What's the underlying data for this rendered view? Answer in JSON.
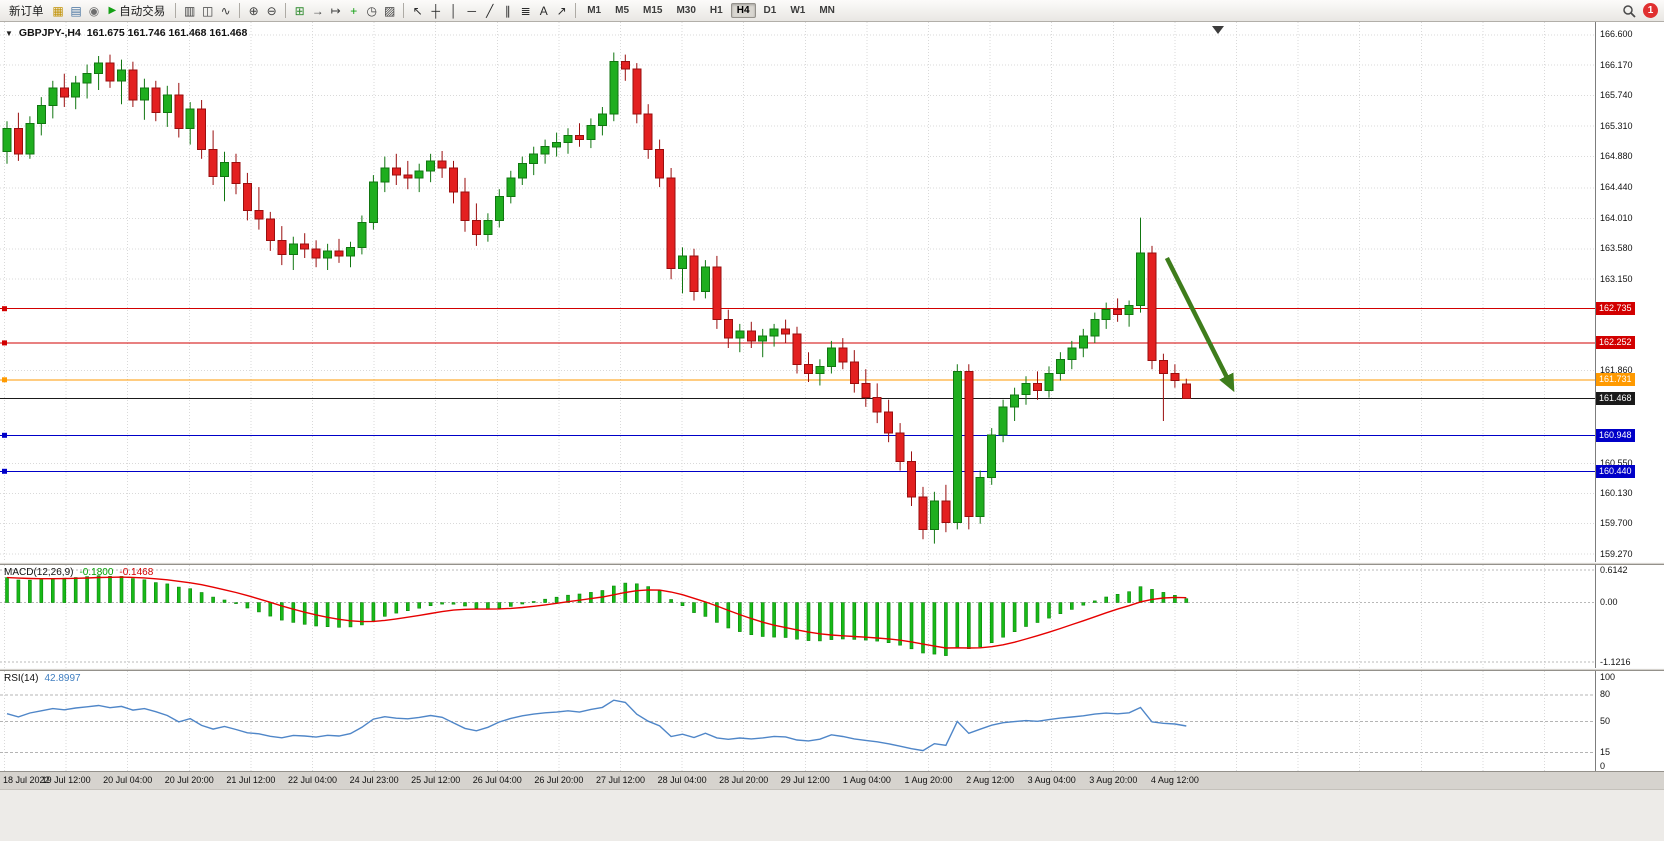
{
  "icons": {
    "chart_menu": "▼"
  },
  "toolbar": {
    "items": [
      {
        "type": "button",
        "name": "new-order-button",
        "label": "新订单"
      },
      {
        "type": "icon",
        "name": "market-watch-icon",
        "glyph": "▦",
        "color": "#c09000"
      },
      {
        "type": "icon",
        "name": "data-window-icon",
        "glyph": "▤",
        "color": "#44719f"
      },
      {
        "type": "icon",
        "name": "navigator-icon",
        "glyph": "◉",
        "color": "#6e6e6e"
      },
      {
        "type": "button",
        "name": "auto-trading-button",
        "label": "自动交易",
        "glyph": "▶",
        "glyph_color": "#14a014"
      },
      {
        "type": "sep"
      },
      {
        "type": "icon",
        "name": "bar-chart-icon",
        "glyph": "▥",
        "color": "#3e3e3e"
      },
      {
        "type": "icon",
        "name": "candlestick-chart-icon",
        "glyph": "◫",
        "color": "#3e3e3e"
      },
      {
        "type": "icon",
        "name": "line-chart-icon",
        "glyph": "∿",
        "color": "#3e3e3e"
      },
      {
        "type": "sep"
      },
      {
        "type": "icon",
        "name": "zoom-in-icon",
        "glyph": "⊕",
        "color": "#3e3e3e"
      },
      {
        "type": "icon",
        "name": "zoom-out-icon",
        "glyph": "⊖",
        "color": "#3e3e3e"
      },
      {
        "type": "sep"
      },
      {
        "type": "icon",
        "name": "tile-windows-icon",
        "glyph": "⊞",
        "color": "#2e8b2e"
      },
      {
        "type": "icon",
        "name": "auto-scroll-icon",
        "glyph": "→",
        "color": "#3e3e3e"
      },
      {
        "type": "icon",
        "name": "chart-shift-icon",
        "glyph": "↦",
        "color": "#3e3e3e"
      },
      {
        "type": "icon",
        "name": "indicators-icon",
        "glyph": "+",
        "color": "#12a012"
      },
      {
        "type": "icon",
        "name": "periods-icon",
        "glyph": "◷",
        "color": "#3e3e3e"
      },
      {
        "type": "icon",
        "name": "templates-icon",
        "glyph": "▨",
        "color": "#3e3e3e"
      },
      {
        "type": "sep"
      },
      {
        "type": "icon",
        "name": "cursor-icon",
        "glyph": "↖",
        "color": "#2b2b2b"
      },
      {
        "type": "icon",
        "name": "crosshair-icon",
        "glyph": "┼",
        "color": "#2b2b2b"
      },
      {
        "type": "icon",
        "name": "vertical-line-icon",
        "glyph": "│",
        "color": "#2b2b2b"
      },
      {
        "type": "icon",
        "name": "horizontal-line-icon",
        "glyph": "─",
        "color": "#2b2b2b"
      },
      {
        "type": "icon",
        "name": "trendline-icon",
        "glyph": "╱",
        "color": "#2b2b2b"
      },
      {
        "type": "icon",
        "name": "channel-icon",
        "glyph": "∥",
        "color": "#2b2b2b"
      },
      {
        "type": "icon",
        "name": "fibonacci-icon",
        "glyph": "≣",
        "color": "#2b2b2b"
      },
      {
        "type": "icon",
        "name": "text-icon",
        "glyph": "A",
        "color": "#2b2b2b"
      },
      {
        "type": "icon",
        "name": "arrow-tool-icon",
        "glyph": "↗",
        "color": "#2b2b2b"
      },
      {
        "type": "sep"
      }
    ],
    "timeframes": [
      "M1",
      "M5",
      "M15",
      "M30",
      "H1",
      "H4",
      "D1",
      "W1",
      "MN"
    ],
    "active_timeframe": "H4",
    "notification_count": "1"
  },
  "chart_data": {
    "type": "candlestick",
    "title": "GBPJPY-,H4",
    "symbol": "GBPJPY-",
    "timeframe": "H4",
    "ohlc_display": "161.675 161.746 161.468 161.468",
    "price_axis": {
      "range": [
        159.16,
        166.78
      ],
      "ticks": [
        "166.600",
        "166.170",
        "165.740",
        "165.310",
        "164.880",
        "164.440",
        "164.010",
        "163.580",
        "163.150",
        "161.860",
        "160.550",
        "160.130",
        "159.700",
        "159.270"
      ]
    },
    "x_labels": [
      "18 Jul 2022",
      "19 Jul 12:00",
      "20 Jul 04:00",
      "20 Jul 20:00",
      "21 Jul 12:00",
      "22 Jul 04:00",
      "24 Jul 23:00",
      "25 Jul 12:00",
      "26 Jul 04:00",
      "26 Jul 20:00",
      "27 Jul 12:00",
      "28 Jul 04:00",
      "28 Jul 20:00",
      "29 Jul 12:00",
      "1 Aug 04:00",
      "1 Aug 20:00",
      "2 Aug 12:00",
      "3 Aug 04:00",
      "3 Aug 20:00",
      "4 Aug 12:00"
    ],
    "hlines": [
      {
        "label": "162.735",
        "value": 162.735,
        "color": "#d20000"
      },
      {
        "label": "162.252",
        "value": 162.252,
        "color": "#d20000"
      },
      {
        "label": "161.731",
        "value": 161.731,
        "color": "#ff9a00"
      },
      {
        "label": "160.948",
        "value": 160.948,
        "color": "#0000c8"
      },
      {
        "label": "160.440",
        "value": 160.44,
        "color": "#0000c8"
      }
    ],
    "current_price": {
      "label": "161.468",
      "value": 161.468,
      "color": "#1a1a1a"
    },
    "trend_arrow": {
      "from_index": 101.3,
      "from_price": 163.45,
      "to_index": 107.0,
      "to_price": 161.62,
      "color": "#3e7d1c"
    },
    "colors": {
      "bull": "#1fae1f",
      "bull_border": "#117611",
      "bear": "#e32020",
      "bear_border": "#9a0e0e",
      "grid": "#d9d9d9"
    },
    "candles": [
      [
        164.95,
        165.38,
        164.78,
        165.28
      ],
      [
        165.28,
        165.5,
        164.82,
        164.92
      ],
      [
        164.92,
        165.45,
        164.85,
        165.35
      ],
      [
        165.35,
        165.72,
        165.18,
        165.6
      ],
      [
        165.6,
        165.95,
        165.42,
        165.85
      ],
      [
        165.85,
        166.05,
        165.58,
        165.72
      ],
      [
        165.72,
        166.02,
        165.55,
        165.92
      ],
      [
        165.92,
        166.18,
        165.7,
        166.05
      ],
      [
        166.05,
        166.3,
        165.82,
        166.2
      ],
      [
        166.2,
        166.32,
        165.85,
        165.95
      ],
      [
        165.95,
        166.25,
        165.62,
        166.1
      ],
      [
        166.1,
        166.22,
        165.58,
        165.68
      ],
      [
        165.68,
        165.98,
        165.4,
        165.85
      ],
      [
        165.85,
        165.95,
        165.38,
        165.5
      ],
      [
        165.5,
        165.88,
        165.3,
        165.75
      ],
      [
        165.75,
        165.92,
        165.15,
        165.28
      ],
      [
        165.28,
        165.65,
        165.05,
        165.55
      ],
      [
        165.55,
        165.68,
        164.85,
        164.98
      ],
      [
        164.98,
        165.25,
        164.48,
        164.6
      ],
      [
        164.6,
        164.95,
        164.25,
        164.8
      ],
      [
        164.8,
        164.92,
        164.35,
        164.5
      ],
      [
        164.5,
        164.65,
        163.98,
        164.12
      ],
      [
        164.12,
        164.45,
        163.85,
        164.0
      ],
      [
        164.0,
        164.1,
        163.55,
        163.7
      ],
      [
        163.7,
        163.9,
        163.35,
        163.5
      ],
      [
        163.5,
        163.75,
        163.28,
        163.65
      ],
      [
        163.65,
        163.8,
        163.45,
        163.58
      ],
      [
        163.58,
        163.7,
        163.32,
        163.45
      ],
      [
        163.45,
        163.65,
        163.28,
        163.55
      ],
      [
        163.55,
        163.72,
        163.38,
        163.48
      ],
      [
        163.48,
        163.68,
        163.32,
        163.6
      ],
      [
        163.6,
        164.05,
        163.5,
        163.95
      ],
      [
        163.95,
        164.62,
        163.85,
        164.52
      ],
      [
        164.52,
        164.88,
        164.38,
        164.72
      ],
      [
        164.72,
        164.92,
        164.48,
        164.62
      ],
      [
        164.62,
        164.82,
        164.42,
        164.58
      ],
      [
        164.58,
        164.78,
        164.38,
        164.68
      ],
      [
        164.68,
        164.92,
        164.52,
        164.82
      ],
      [
        164.82,
        164.96,
        164.58,
        164.72
      ],
      [
        164.72,
        164.82,
        164.22,
        164.38
      ],
      [
        164.38,
        164.58,
        163.82,
        163.98
      ],
      [
        163.98,
        164.22,
        163.62,
        163.78
      ],
      [
        163.78,
        164.08,
        163.68,
        163.98
      ],
      [
        163.98,
        164.42,
        163.88,
        164.32
      ],
      [
        164.32,
        164.68,
        164.22,
        164.58
      ],
      [
        164.58,
        164.88,
        164.48,
        164.78
      ],
      [
        164.78,
        165.02,
        164.62,
        164.92
      ],
      [
        164.92,
        165.12,
        164.78,
        165.02
      ],
      [
        165.02,
        165.22,
        164.88,
        165.08
      ],
      [
        165.08,
        165.28,
        164.92,
        165.18
      ],
      [
        165.18,
        165.35,
        165.02,
        165.12
      ],
      [
        165.12,
        165.42,
        165.0,
        165.32
      ],
      [
        165.32,
        165.58,
        165.18,
        165.48
      ],
      [
        165.48,
        166.35,
        165.38,
        166.22
      ],
      [
        166.22,
        166.32,
        165.95,
        166.12
      ],
      [
        166.12,
        166.2,
        165.35,
        165.48
      ],
      [
        165.48,
        165.62,
        164.85,
        164.98
      ],
      [
        164.98,
        165.12,
        164.45,
        164.58
      ],
      [
        164.58,
        164.72,
        163.15,
        163.3
      ],
      [
        163.3,
        163.6,
        162.95,
        163.48
      ],
      [
        163.48,
        163.58,
        162.85,
        162.98
      ],
      [
        162.98,
        163.42,
        162.88,
        163.32
      ],
      [
        163.32,
        163.48,
        162.45,
        162.58
      ],
      [
        162.58,
        162.72,
        162.18,
        162.32
      ],
      [
        162.32,
        162.52,
        162.12,
        162.42
      ],
      [
        162.42,
        162.55,
        162.18,
        162.28
      ],
      [
        162.28,
        162.45,
        162.05,
        162.35
      ],
      [
        162.35,
        162.52,
        162.2,
        162.45
      ],
      [
        162.45,
        162.58,
        162.25,
        162.38
      ],
      [
        162.38,
        162.48,
        161.82,
        161.95
      ],
      [
        161.95,
        162.12,
        161.7,
        161.82
      ],
      [
        161.82,
        162.02,
        161.65,
        161.92
      ],
      [
        161.92,
        162.28,
        161.82,
        162.18
      ],
      [
        162.18,
        162.32,
        161.88,
        161.98
      ],
      [
        161.98,
        162.15,
        161.55,
        161.68
      ],
      [
        161.68,
        161.88,
        161.35,
        161.48
      ],
      [
        161.48,
        161.68,
        161.12,
        161.28
      ],
      [
        161.28,
        161.45,
        160.85,
        160.98
      ],
      [
        160.98,
        161.12,
        160.45,
        160.58
      ],
      [
        160.58,
        160.72,
        159.95,
        160.08
      ],
      [
        160.08,
        160.22,
        159.48,
        159.62
      ],
      [
        159.62,
        160.15,
        159.42,
        160.02
      ],
      [
        160.02,
        160.25,
        159.58,
        159.72
      ],
      [
        159.72,
        161.95,
        159.62,
        161.85
      ],
      [
        161.85,
        161.95,
        159.62,
        159.8
      ],
      [
        159.8,
        160.45,
        159.7,
        160.35
      ],
      [
        160.35,
        161.05,
        160.25,
        160.95
      ],
      [
        160.95,
        161.45,
        160.85,
        161.35
      ],
      [
        161.35,
        161.62,
        161.15,
        161.52
      ],
      [
        161.52,
        161.78,
        161.38,
        161.68
      ],
      [
        161.68,
        161.85,
        161.45,
        161.58
      ],
      [
        161.58,
        161.92,
        161.48,
        161.82
      ],
      [
        161.82,
        162.12,
        161.72,
        162.02
      ],
      [
        162.02,
        162.28,
        161.88,
        162.18
      ],
      [
        162.18,
        162.45,
        162.05,
        162.35
      ],
      [
        162.35,
        162.68,
        162.25,
        162.58
      ],
      [
        162.58,
        162.82,
        162.45,
        162.72
      ],
      [
        162.72,
        162.88,
        162.55,
        162.65
      ],
      [
        162.65,
        162.85,
        162.48,
        162.78
      ],
      [
        162.78,
        164.02,
        162.68,
        163.52
      ],
      [
        163.52,
        163.62,
        161.88,
        162.0
      ],
      [
        162.0,
        162.1,
        161.15,
        161.82
      ],
      [
        161.82,
        161.95,
        161.62,
        161.72
      ],
      [
        161.675,
        161.746,
        161.468,
        161.468
      ]
    ],
    "indicators": {
      "macd": {
        "label": "MACD(12,26,9)",
        "main_value": "-0.1800",
        "signal_value": "-0.1468",
        "axis_ticks": [
          {
            "label": "0.6142",
            "value": 0.6142
          },
          {
            "label": "0.00",
            "value": 0
          },
          {
            "label": "-1.1216",
            "value": -1.1216
          }
        ],
        "range": [
          -1.2348,
          0.7085
        ],
        "histogram_color": "#17b917",
        "histogram_border": "#0a870a",
        "signal_color": "#e60000"
      },
      "rsi": {
        "label": "RSI(14)",
        "value": "42.8997",
        "axis_ticks": [
          {
            "label": "100",
            "value": 100
          },
          {
            "label": "80",
            "value": 80
          },
          {
            "label": "50",
            "value": 50
          },
          {
            "label": "15",
            "value": 15
          },
          {
            "label": "0",
            "value": 0
          }
        ],
        "levels": [
          80,
          50,
          15
        ],
        "line_color": "#4f86c8"
      }
    }
  }
}
